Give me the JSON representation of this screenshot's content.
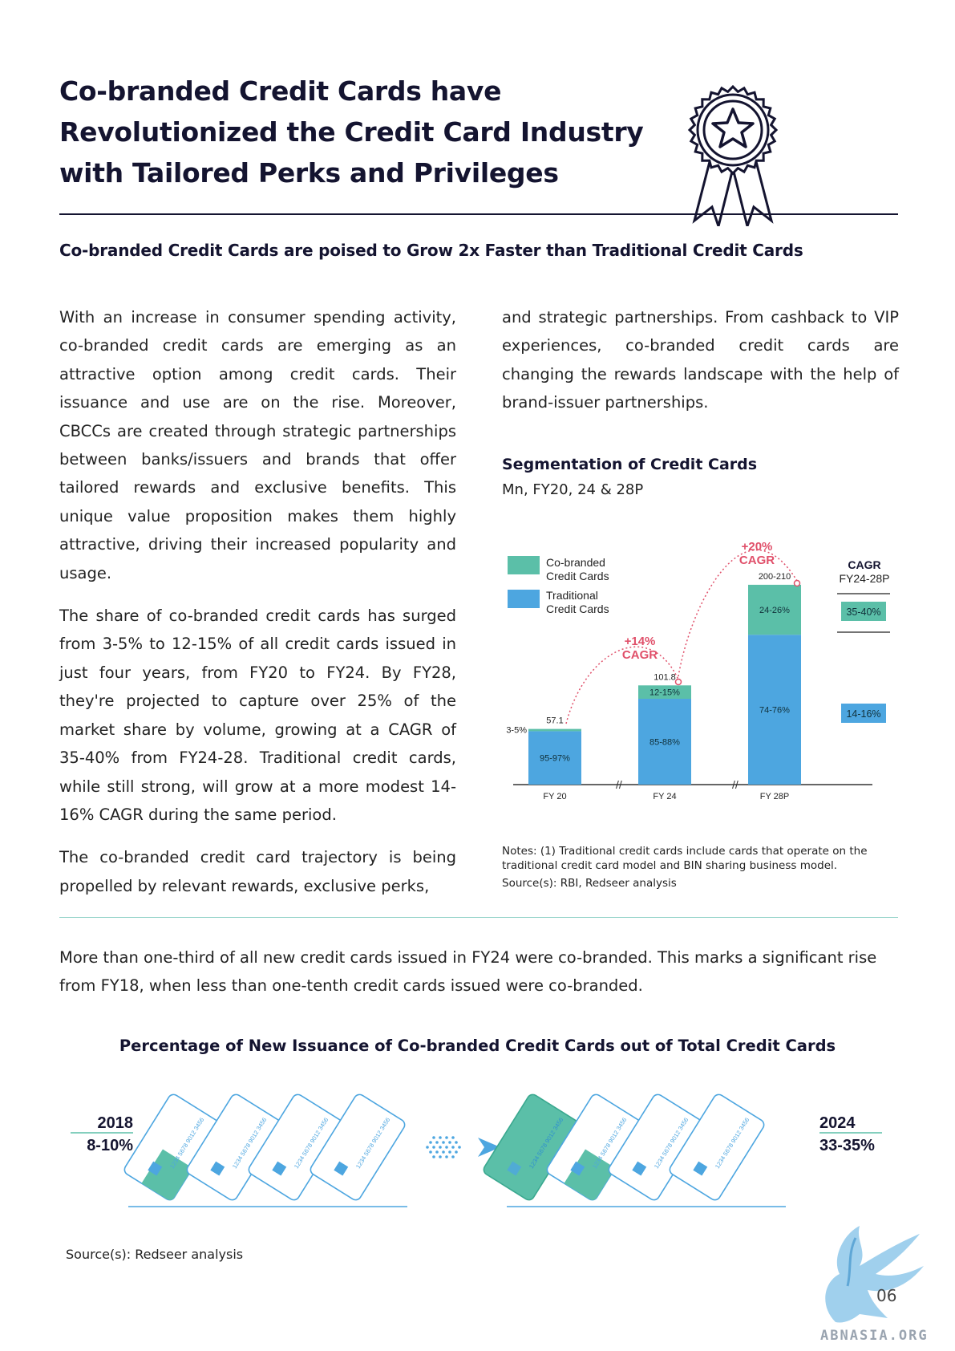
{
  "header": {
    "title_lines": [
      "Co-branded Credit Cards have",
      "Revolutionized the Credit Card Industry",
      "with Tailored Perks and Privileges"
    ],
    "subtitle": "Co-branded Credit Cards are poised to Grow 2x Faster than Traditional Credit Cards"
  },
  "body": {
    "col1_p1": "With an increase in consumer spending activity, co-branded credit cards are emerging as an attractive option among credit cards. Their issuance and use are on the rise. Moreover, CBCCs are created through strategic partnerships between banks/issuers and brands that offer tailored rewards and exclusive benefits. This unique value proposition makes them highly attractive, driving their increased popularity and usage.",
    "col1_p2": "The share of co-branded credit cards has surged from 3-5% to 12-15% of all credit cards issued in just four years, from FY20 to FY24. By FY28, they're projected to capture over 25% of the market share by volume, growing at a CAGR of 35-40% from FY24-28. Traditional credit cards, while still strong, will grow at a more modest 14-16% CAGR during the same period.",
    "col1_p3": "The co-branded credit card trajectory is being propelled by relevant rewards, exclusive perks,",
    "col2_p1": "and strategic partnerships. From cashback to VIP experiences, co-branded credit cards are changing the rewards landscape with the help of brand-issuer partnerships."
  },
  "chart_meta": {
    "title": "Segmentation of Credit Cards",
    "subtitle": "Mn, FY20, 24 & 28P",
    "legend": [
      "Co-branded",
      "Credit Cards",
      "Traditional",
      "Credit Cards"
    ],
    "cagr_header": "CAGR",
    "cagr_period": "FY24-28P",
    "cagr_cobranded": "35-40%",
    "cagr_traditional": "14-16%",
    "arrow_labels": [
      "+14%",
      "CAGR",
      "+20%",
      "CAGR"
    ],
    "notes": "Notes: (1) Traditional credit cards include cards that operate on the traditional credit card model and BIN sharing business model.",
    "source": "Source(s): RBI, Redseer analysis",
    "colors": {
      "cobranded": "#5bbfa8",
      "traditional": "#4da6e0",
      "arrow": "#e0506a"
    }
  },
  "chart_data": {
    "type": "bar",
    "stacked": true,
    "categories": [
      "FY 20",
      "FY 24",
      "FY 28P"
    ],
    "totals": [
      57.1,
      101.8,
      205
    ],
    "total_labels": [
      "57.1",
      "101.8",
      "200-210"
    ],
    "series": [
      {
        "name": "Traditional Credit Cards",
        "share_labels": [
          "95-97%",
          "85-88%",
          "74-76%"
        ],
        "share_mid": [
          0.96,
          0.865,
          0.75
        ]
      },
      {
        "name": "Co-branded Credit Cards",
        "share_labels": [
          "3-5%",
          "12-15%",
          "24-26%"
        ],
        "share_mid": [
          0.04,
          0.135,
          0.25
        ]
      }
    ]
  },
  "bottom": {
    "text": "More than one-third of all new credit cards issued in FY24 were co-branded. This marks a significant rise from FY18, when less than one-tenth credit cards issued were co-branded.",
    "issuance_title": "Percentage of New Issuance of Co-branded Credit Cards out of Total Credit Cards",
    "left_year": "2018",
    "left_pct": "8-10%",
    "right_year": "2024",
    "right_pct": "33-35%",
    "card_number": "1234 5678 9012 3456",
    "source": "Source(s): Redseer analysis",
    "page_number": "06",
    "site": "ABNASIA.ORG"
  }
}
